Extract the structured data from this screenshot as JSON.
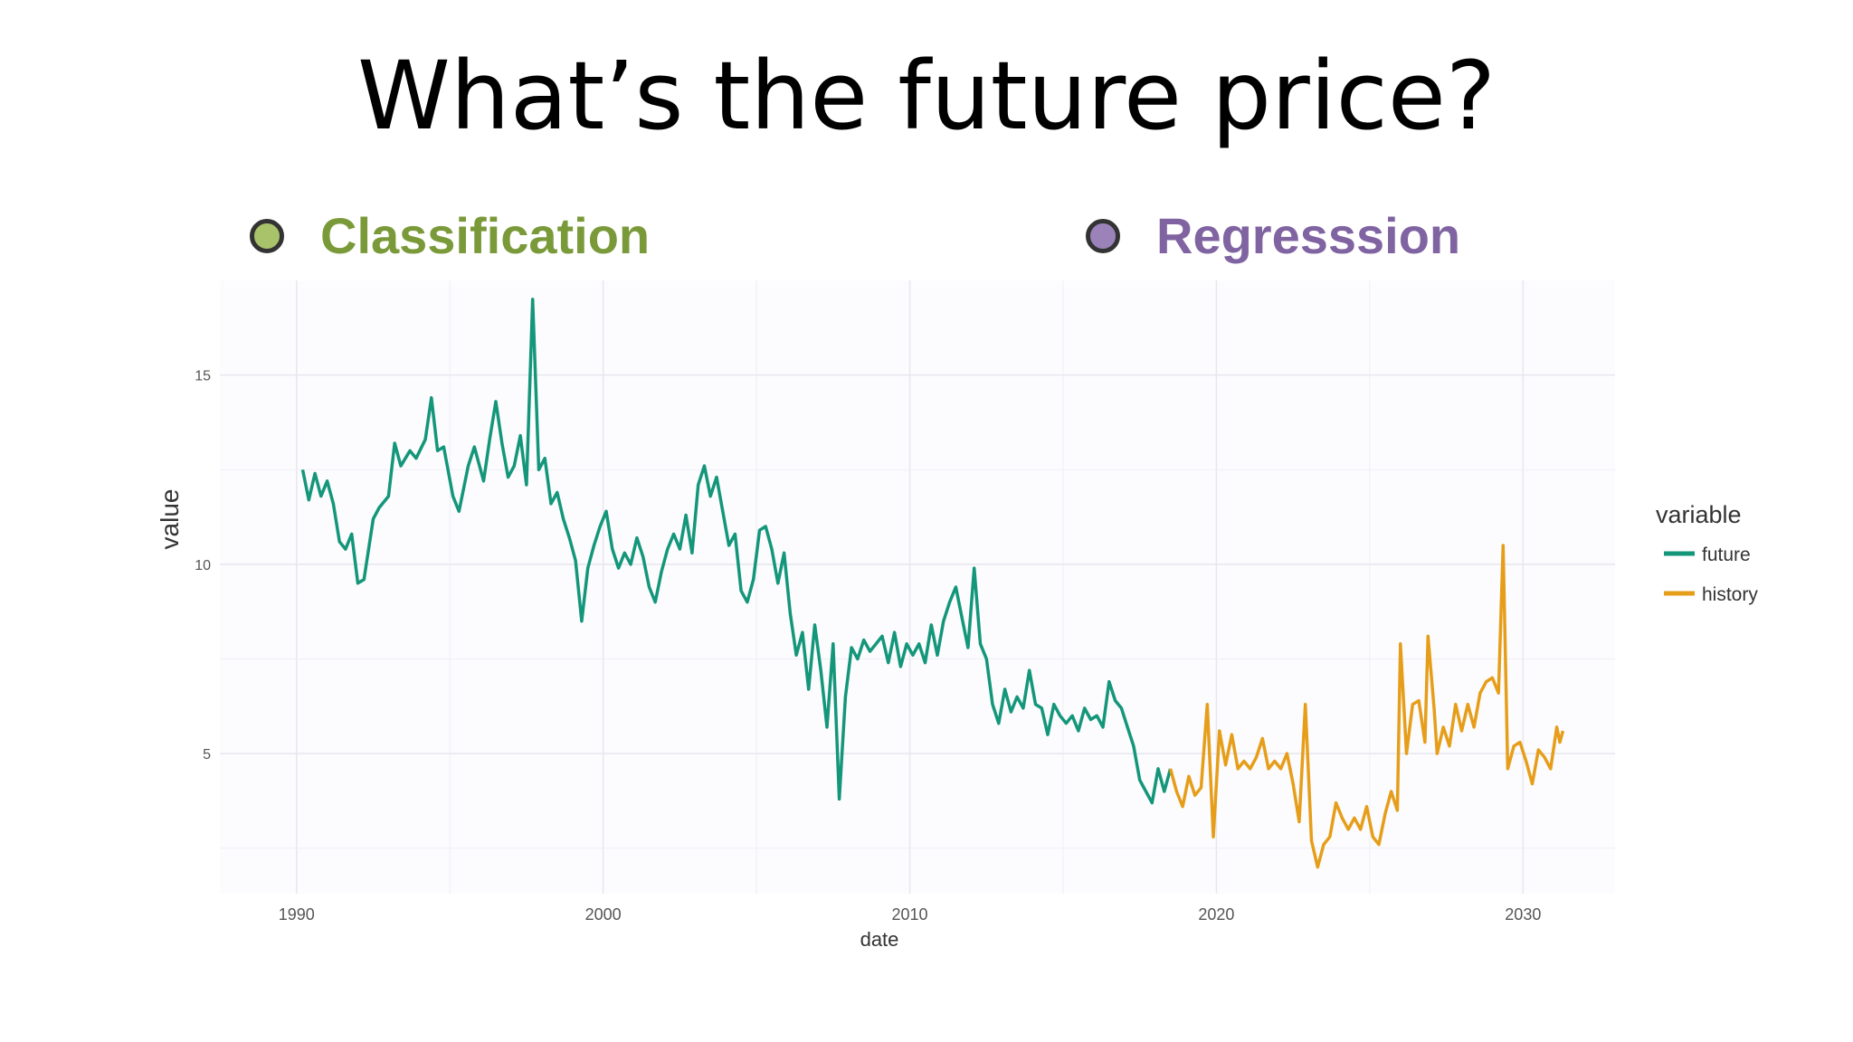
{
  "slide": {
    "title": "What’s the future price?",
    "options": [
      {
        "label": "Classification",
        "color": "#7a9a3a",
        "dot_color": "#a9c36b"
      },
      {
        "label": "Regresssion",
        "color": "#8064a2",
        "dot_color": "#9b83ba"
      }
    ]
  },
  "chart_data": {
    "type": "line",
    "xlabel": "date",
    "ylabel": "value",
    "x_ticks": [
      1990,
      2000,
      2010,
      2020,
      2030
    ],
    "y_ticks": [
      5,
      10,
      15
    ],
    "xlim": [
      1987.5,
      2033.0
    ],
    "ylim": [
      1.3,
      17.5
    ],
    "grid": true,
    "legend": {
      "title": "variable",
      "position": "right"
    },
    "series": [
      {
        "name": "future",
        "color": "#14967a",
        "points": [
          [
            1990.2,
            12.5
          ],
          [
            1990.4,
            11.7
          ],
          [
            1990.6,
            12.4
          ],
          [
            1990.8,
            11.8
          ],
          [
            1991.0,
            12.2
          ],
          [
            1991.2,
            11.6
          ],
          [
            1991.4,
            10.6
          ],
          [
            1991.6,
            10.4
          ],
          [
            1991.8,
            10.8
          ],
          [
            1992.0,
            9.5
          ],
          [
            1992.2,
            9.6
          ],
          [
            1992.5,
            11.2
          ],
          [
            1992.7,
            11.5
          ],
          [
            1993.0,
            11.8
          ],
          [
            1993.2,
            13.2
          ],
          [
            1993.4,
            12.6
          ],
          [
            1993.7,
            13.0
          ],
          [
            1993.9,
            12.8
          ],
          [
            1994.2,
            13.3
          ],
          [
            1994.4,
            14.4
          ],
          [
            1994.6,
            13.0
          ],
          [
            1994.8,
            13.1
          ],
          [
            1995.1,
            11.8
          ],
          [
            1995.3,
            11.4
          ],
          [
            1995.6,
            12.6
          ],
          [
            1995.8,
            13.1
          ],
          [
            1996.1,
            12.2
          ],
          [
            1996.3,
            13.3
          ],
          [
            1996.5,
            14.3
          ],
          [
            1996.7,
            13.2
          ],
          [
            1996.9,
            12.3
          ],
          [
            1997.1,
            12.6
          ],
          [
            1997.3,
            13.4
          ],
          [
            1997.5,
            12.1
          ],
          [
            1997.7,
            17.0
          ],
          [
            1997.9,
            12.5
          ],
          [
            1998.1,
            12.8
          ],
          [
            1998.3,
            11.6
          ],
          [
            1998.5,
            11.9
          ],
          [
            1998.7,
            11.2
          ],
          [
            1998.9,
            10.7
          ],
          [
            1999.1,
            10.1
          ],
          [
            1999.3,
            8.5
          ],
          [
            1999.5,
            9.9
          ],
          [
            1999.7,
            10.5
          ],
          [
            1999.9,
            11.0
          ],
          [
            2000.1,
            11.4
          ],
          [
            2000.3,
            10.4
          ],
          [
            2000.5,
            9.9
          ],
          [
            2000.7,
            10.3
          ],
          [
            2000.9,
            10.0
          ],
          [
            2001.1,
            10.7
          ],
          [
            2001.3,
            10.2
          ],
          [
            2001.5,
            9.4
          ],
          [
            2001.7,
            9.0
          ],
          [
            2001.9,
            9.8
          ],
          [
            2002.1,
            10.4
          ],
          [
            2002.3,
            10.8
          ],
          [
            2002.5,
            10.4
          ],
          [
            2002.7,
            11.3
          ],
          [
            2002.9,
            10.3
          ],
          [
            2003.1,
            12.1
          ],
          [
            2003.3,
            12.6
          ],
          [
            2003.5,
            11.8
          ],
          [
            2003.7,
            12.3
          ],
          [
            2003.9,
            11.4
          ],
          [
            2004.1,
            10.5
          ],
          [
            2004.3,
            10.8
          ],
          [
            2004.5,
            9.3
          ],
          [
            2004.7,
            9.0
          ],
          [
            2004.9,
            9.6
          ],
          [
            2005.1,
            10.9
          ],
          [
            2005.3,
            11.0
          ],
          [
            2005.5,
            10.4
          ],
          [
            2005.7,
            9.5
          ],
          [
            2005.9,
            10.3
          ],
          [
            2006.1,
            8.7
          ],
          [
            2006.3,
            7.6
          ],
          [
            2006.5,
            8.2
          ],
          [
            2006.7,
            6.7
          ],
          [
            2006.9,
            8.4
          ],
          [
            2007.1,
            7.2
          ],
          [
            2007.3,
            5.7
          ],
          [
            2007.5,
            7.9
          ],
          [
            2007.7,
            3.8
          ],
          [
            2007.9,
            6.5
          ],
          [
            2008.1,
            7.8
          ],
          [
            2008.3,
            7.5
          ],
          [
            2008.5,
            8.0
          ],
          [
            2008.7,
            7.7
          ],
          [
            2008.9,
            7.9
          ],
          [
            2009.1,
            8.1
          ],
          [
            2009.3,
            7.4
          ],
          [
            2009.5,
            8.2
          ],
          [
            2009.7,
            7.3
          ],
          [
            2009.9,
            7.9
          ],
          [
            2010.1,
            7.6
          ],
          [
            2010.3,
            7.9
          ],
          [
            2010.5,
            7.4
          ],
          [
            2010.7,
            8.4
          ],
          [
            2010.9,
            7.6
          ],
          [
            2011.1,
            8.5
          ],
          [
            2011.3,
            9.0
          ],
          [
            2011.5,
            9.4
          ],
          [
            2011.7,
            8.6
          ],
          [
            2011.9,
            7.8
          ],
          [
            2012.1,
            9.9
          ],
          [
            2012.3,
            7.9
          ],
          [
            2012.5,
            7.5
          ],
          [
            2012.7,
            6.3
          ],
          [
            2012.9,
            5.8
          ],
          [
            2013.1,
            6.7
          ],
          [
            2013.3,
            6.1
          ],
          [
            2013.5,
            6.5
          ],
          [
            2013.7,
            6.2
          ],
          [
            2013.9,
            7.2
          ],
          [
            2014.1,
            6.3
          ],
          [
            2014.3,
            6.2
          ],
          [
            2014.5,
            5.5
          ],
          [
            2014.7,
            6.3
          ],
          [
            2014.9,
            6.0
          ],
          [
            2015.1,
            5.8
          ],
          [
            2015.3,
            6.0
          ],
          [
            2015.5,
            5.6
          ],
          [
            2015.7,
            6.2
          ],
          [
            2015.9,
            5.9
          ],
          [
            2016.1,
            6.0
          ],
          [
            2016.3,
            5.7
          ],
          [
            2016.5,
            6.9
          ],
          [
            2016.7,
            6.4
          ],
          [
            2016.9,
            6.2
          ],
          [
            2017.1,
            5.7
          ],
          [
            2017.3,
            5.2
          ],
          [
            2017.5,
            4.3
          ],
          [
            2017.7,
            4.0
          ],
          [
            2017.9,
            3.7
          ],
          [
            2018.1,
            4.6
          ],
          [
            2018.3,
            4.0
          ],
          [
            2018.5,
            4.6
          ]
        ]
      },
      {
        "name": "history",
        "color": "#e69e1a",
        "points": [
          [
            2018.5,
            4.6
          ],
          [
            2018.7,
            4.0
          ],
          [
            2018.9,
            3.6
          ],
          [
            2019.1,
            4.4
          ],
          [
            2019.3,
            3.9
          ],
          [
            2019.5,
            4.1
          ],
          [
            2019.7,
            6.3
          ],
          [
            2019.9,
            2.8
          ],
          [
            2020.1,
            5.6
          ],
          [
            2020.3,
            4.7
          ],
          [
            2020.5,
            5.5
          ],
          [
            2020.7,
            4.6
          ],
          [
            2020.9,
            4.8
          ],
          [
            2021.1,
            4.6
          ],
          [
            2021.3,
            4.9
          ],
          [
            2021.5,
            5.4
          ],
          [
            2021.7,
            4.6
          ],
          [
            2021.9,
            4.8
          ],
          [
            2022.1,
            4.6
          ],
          [
            2022.3,
            5.0
          ],
          [
            2022.5,
            4.2
          ],
          [
            2022.7,
            3.2
          ],
          [
            2022.9,
            6.3
          ],
          [
            2023.1,
            2.7
          ],
          [
            2023.3,
            2.0
          ],
          [
            2023.5,
            2.6
          ],
          [
            2023.7,
            2.8
          ],
          [
            2023.9,
            3.7
          ],
          [
            2024.1,
            3.3
          ],
          [
            2024.3,
            3.0
          ],
          [
            2024.5,
            3.3
          ],
          [
            2024.7,
            3.0
          ],
          [
            2024.9,
            3.6
          ],
          [
            2025.1,
            2.8
          ],
          [
            2025.3,
            2.6
          ],
          [
            2025.5,
            3.4
          ],
          [
            2025.7,
            4.0
          ],
          [
            2025.9,
            3.5
          ],
          [
            2026.0,
            7.9
          ],
          [
            2026.2,
            5.0
          ],
          [
            2026.4,
            6.3
          ],
          [
            2026.6,
            6.4
          ],
          [
            2026.8,
            5.3
          ],
          [
            2026.9,
            8.1
          ],
          [
            2027.1,
            6.2
          ],
          [
            2027.2,
            5.0
          ],
          [
            2027.4,
            5.7
          ],
          [
            2027.6,
            5.2
          ],
          [
            2027.8,
            6.3
          ],
          [
            2028.0,
            5.6
          ],
          [
            2028.2,
            6.3
          ],
          [
            2028.4,
            5.7
          ],
          [
            2028.6,
            6.6
          ],
          [
            2028.8,
            6.9
          ],
          [
            2029.0,
            7.0
          ],
          [
            2029.2,
            6.6
          ],
          [
            2029.35,
            10.5
          ],
          [
            2029.5,
            4.6
          ],
          [
            2029.7,
            5.2
          ],
          [
            2029.9,
            5.3
          ],
          [
            2030.1,
            4.8
          ],
          [
            2030.3,
            4.2
          ],
          [
            2030.5,
            5.1
          ],
          [
            2030.7,
            4.9
          ],
          [
            2030.9,
            4.6
          ],
          [
            2031.1,
            5.7
          ],
          [
            2031.2,
            5.3
          ],
          [
            2031.3,
            5.6
          ]
        ]
      }
    ]
  }
}
